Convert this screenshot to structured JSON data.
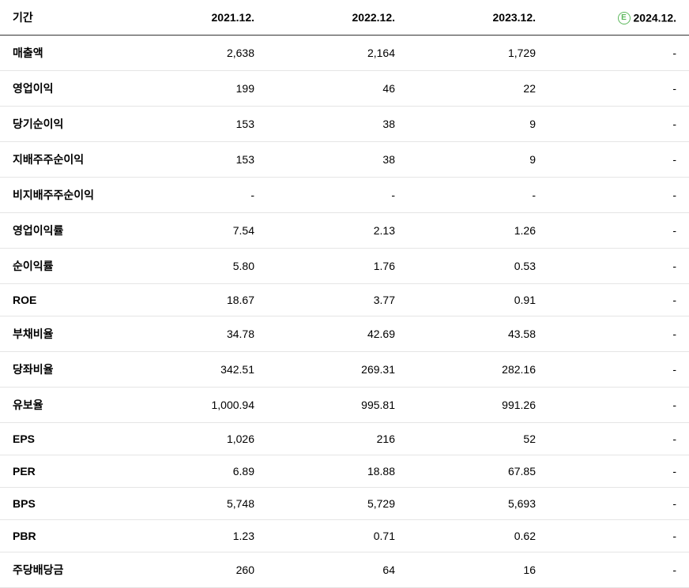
{
  "table": {
    "header_label": "기간",
    "columns": [
      "2021.12.",
      "2022.12.",
      "2023.12.",
      "2024.12."
    ],
    "estimate_badge": "E",
    "estimate_column_index": 3,
    "rows": [
      {
        "label": "매출액",
        "values": [
          "2,638",
          "2,164",
          "1,729",
          "-"
        ]
      },
      {
        "label": "영업이익",
        "values": [
          "199",
          "46",
          "22",
          "-"
        ]
      },
      {
        "label": "당기순이익",
        "values": [
          "153",
          "38",
          "9",
          "-"
        ]
      },
      {
        "label": "지배주주순이익",
        "values": [
          "153",
          "38",
          "9",
          "-"
        ]
      },
      {
        "label": "비지배주주순이익",
        "values": [
          "-",
          "-",
          "-",
          "-"
        ]
      },
      {
        "label": "영업이익률",
        "values": [
          "7.54",
          "2.13",
          "1.26",
          "-"
        ]
      },
      {
        "label": "순이익률",
        "values": [
          "5.80",
          "1.76",
          "0.53",
          "-"
        ]
      },
      {
        "label": "ROE",
        "values": [
          "18.67",
          "3.77",
          "0.91",
          "-"
        ]
      },
      {
        "label": "부채비율",
        "values": [
          "34.78",
          "42.69",
          "43.58",
          "-"
        ]
      },
      {
        "label": "당좌비율",
        "values": [
          "342.51",
          "269.31",
          "282.16",
          "-"
        ]
      },
      {
        "label": "유보율",
        "values": [
          "1,000.94",
          "995.81",
          "991.26",
          "-"
        ]
      },
      {
        "label": "EPS",
        "values": [
          "1,026",
          "216",
          "52",
          "-"
        ]
      },
      {
        "label": "PER",
        "values": [
          "6.89",
          "18.88",
          "67.85",
          "-"
        ]
      },
      {
        "label": "BPS",
        "values": [
          "5,748",
          "5,729",
          "5,693",
          "-"
        ]
      },
      {
        "label": "PBR",
        "values": [
          "1.23",
          "0.71",
          "0.62",
          "-"
        ]
      },
      {
        "label": "주당배당금",
        "values": [
          "260",
          "64",
          "16",
          "-"
        ]
      }
    ]
  },
  "colors": {
    "border_header": "#333333",
    "border_row": "#e5e5e5",
    "text": "#000000",
    "estimate_badge": "#5cb85c",
    "background": "#ffffff"
  }
}
